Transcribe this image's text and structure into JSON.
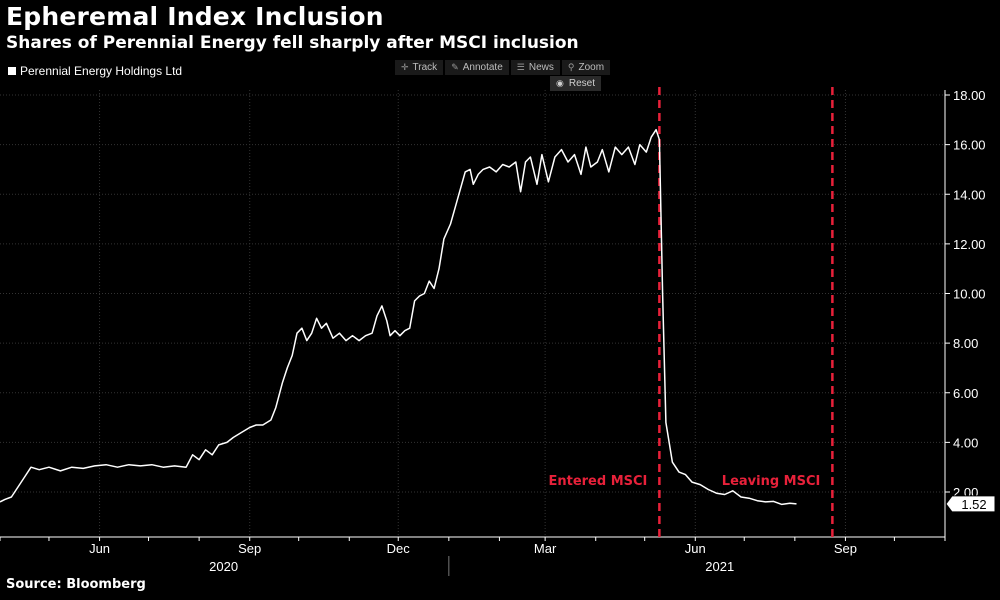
{
  "header": {
    "title": "Epheremal Index Inclusion",
    "subtitle": "Shares of Perennial Energy fell sharply after MSCI inclusion"
  },
  "legend": {
    "label": "Perennial Energy Holdings Ltd"
  },
  "toolbar": {
    "track": "Track",
    "annotate": "Annotate",
    "news": "News",
    "zoom": "Zoom",
    "reset": "Reset"
  },
  "source": "Source: Bloomberg",
  "chart_data": {
    "type": "line",
    "title": "Epheremal Index Inclusion",
    "subtitle": "Shares of Perennial Energy fell sharply after MSCI inclusion",
    "x_range": [
      "2020-04-01",
      "2021-11-01"
    ],
    "ylim": [
      0,
      18
    ],
    "y_ticks": [
      "2.00",
      "4.00",
      "6.00",
      "8.00",
      "10.00",
      "12.00",
      "14.00",
      "16.00",
      "18.00"
    ],
    "x_ticks": [
      {
        "label": "Jun",
        "date": "2020-06-01"
      },
      {
        "label": "Sep",
        "date": "2020-09-01"
      },
      {
        "label": "Dec",
        "date": "2020-12-01"
      },
      {
        "label": "Mar",
        "date": "2021-03-01"
      },
      {
        "label": "Jun",
        "date": "2021-06-01"
      },
      {
        "label": "Sep",
        "date": "2021-09-01"
      }
    ],
    "year_labels": [
      {
        "label": "2020",
        "date": "2020-08-16"
      },
      {
        "label": "2021",
        "date": "2021-06-16"
      }
    ],
    "year_divider": "2021-01-01",
    "grid": true,
    "legend_position": "top-left",
    "last_value_label": "1.52",
    "colors": {
      "line": "#ffffff",
      "annotation": "#e8213a",
      "grid": "#333333"
    },
    "annotations": [
      {
        "label": "Entered MSCI",
        "date": "2021-05-10"
      },
      {
        "label": "Leaving MSCI",
        "date": "2021-08-24"
      }
    ],
    "series": [
      {
        "name": "Perennial Energy Holdings Ltd",
        "points": [
          [
            "2020-04-01",
            1.6
          ],
          [
            "2020-04-04",
            1.7
          ],
          [
            "2020-04-08",
            1.8
          ],
          [
            "2020-04-12",
            2.2
          ],
          [
            "2020-04-16",
            2.6
          ],
          [
            "2020-04-20",
            3.0
          ],
          [
            "2020-04-25",
            2.9
          ],
          [
            "2020-05-01",
            3.0
          ],
          [
            "2020-05-08",
            2.85
          ],
          [
            "2020-05-15",
            3.0
          ],
          [
            "2020-05-22",
            2.95
          ],
          [
            "2020-05-29",
            3.05
          ],
          [
            "2020-06-05",
            3.1
          ],
          [
            "2020-06-12",
            3.0
          ],
          [
            "2020-06-19",
            3.1
          ],
          [
            "2020-06-26",
            3.05
          ],
          [
            "2020-07-03",
            3.1
          ],
          [
            "2020-07-10",
            3.0
          ],
          [
            "2020-07-17",
            3.05
          ],
          [
            "2020-07-24",
            3.0
          ],
          [
            "2020-07-28",
            3.5
          ],
          [
            "2020-08-01",
            3.3
          ],
          [
            "2020-08-05",
            3.7
          ],
          [
            "2020-08-09",
            3.5
          ],
          [
            "2020-08-13",
            3.9
          ],
          [
            "2020-08-18",
            4.0
          ],
          [
            "2020-08-22",
            4.2
          ],
          [
            "2020-08-27",
            4.4
          ],
          [
            "2020-09-01",
            4.6
          ],
          [
            "2020-09-05",
            4.7
          ],
          [
            "2020-09-09",
            4.7
          ],
          [
            "2020-09-14",
            4.9
          ],
          [
            "2020-09-17",
            5.4
          ],
          [
            "2020-09-21",
            6.4
          ],
          [
            "2020-09-24",
            7.0
          ],
          [
            "2020-09-27",
            7.5
          ],
          [
            "2020-09-30",
            8.4
          ],
          [
            "2020-10-03",
            8.6
          ],
          [
            "2020-10-06",
            8.1
          ],
          [
            "2020-10-09",
            8.4
          ],
          [
            "2020-10-12",
            9.0
          ],
          [
            "2020-10-15",
            8.6
          ],
          [
            "2020-10-18",
            8.8
          ],
          [
            "2020-10-22",
            8.2
          ],
          [
            "2020-10-26",
            8.4
          ],
          [
            "2020-10-30",
            8.1
          ],
          [
            "2020-11-03",
            8.3
          ],
          [
            "2020-11-07",
            8.1
          ],
          [
            "2020-11-11",
            8.3
          ],
          [
            "2020-11-15",
            8.4
          ],
          [
            "2020-11-18",
            9.1
          ],
          [
            "2020-11-21",
            9.5
          ],
          [
            "2020-11-24",
            8.9
          ],
          [
            "2020-11-26",
            8.3
          ],
          [
            "2020-11-29",
            8.5
          ],
          [
            "2020-12-02",
            8.3
          ],
          [
            "2020-12-05",
            8.5
          ],
          [
            "2020-12-08",
            8.6
          ],
          [
            "2020-12-11",
            9.7
          ],
          [
            "2020-12-14",
            9.9
          ],
          [
            "2020-12-17",
            10.0
          ],
          [
            "2020-12-20",
            10.5
          ],
          [
            "2020-12-23",
            10.2
          ],
          [
            "2020-12-26",
            11.0
          ],
          [
            "2020-12-29",
            12.2
          ],
          [
            "2021-01-02",
            12.8
          ],
          [
            "2021-01-05",
            13.5
          ],
          [
            "2021-01-08",
            14.2
          ],
          [
            "2021-01-11",
            14.9
          ],
          [
            "2021-01-14",
            15.0
          ],
          [
            "2021-01-16",
            14.4
          ],
          [
            "2021-01-19",
            14.8
          ],
          [
            "2021-01-22",
            15.0
          ],
          [
            "2021-01-26",
            15.1
          ],
          [
            "2021-01-30",
            14.9
          ],
          [
            "2021-02-03",
            15.2
          ],
          [
            "2021-02-07",
            15.1
          ],
          [
            "2021-02-11",
            15.3
          ],
          [
            "2021-02-14",
            14.1
          ],
          [
            "2021-02-17",
            15.3
          ],
          [
            "2021-02-20",
            15.5
          ],
          [
            "2021-02-24",
            14.4
          ],
          [
            "2021-02-27",
            15.6
          ],
          [
            "2021-03-03",
            14.5
          ],
          [
            "2021-03-07",
            15.5
          ],
          [
            "2021-03-11",
            15.8
          ],
          [
            "2021-03-15",
            15.3
          ],
          [
            "2021-03-19",
            15.6
          ],
          [
            "2021-03-23",
            14.8
          ],
          [
            "2021-03-26",
            15.9
          ],
          [
            "2021-03-29",
            15.1
          ],
          [
            "2021-04-02",
            15.3
          ],
          [
            "2021-04-05",
            15.8
          ],
          [
            "2021-04-09",
            14.9
          ],
          [
            "2021-04-13",
            15.9
          ],
          [
            "2021-04-17",
            15.6
          ],
          [
            "2021-04-21",
            15.9
          ],
          [
            "2021-04-25",
            15.2
          ],
          [
            "2021-04-28",
            16.0
          ],
          [
            "2021-05-02",
            15.7
          ],
          [
            "2021-05-05",
            16.3
          ],
          [
            "2021-05-08",
            16.6
          ],
          [
            "2021-05-10",
            16.2
          ],
          [
            "2021-05-12",
            10.0
          ],
          [
            "2021-05-14",
            4.8
          ],
          [
            "2021-05-18",
            3.2
          ],
          [
            "2021-05-22",
            2.8
          ],
          [
            "2021-05-26",
            2.7
          ],
          [
            "2021-05-30",
            2.4
          ],
          [
            "2021-06-04",
            2.3
          ],
          [
            "2021-06-09",
            2.1
          ],
          [
            "2021-06-14",
            1.95
          ],
          [
            "2021-06-19",
            1.9
          ],
          [
            "2021-06-24",
            2.05
          ],
          [
            "2021-06-29",
            1.8
          ],
          [
            "2021-07-04",
            1.75
          ],
          [
            "2021-07-09",
            1.65
          ],
          [
            "2021-07-14",
            1.6
          ],
          [
            "2021-07-19",
            1.62
          ],
          [
            "2021-07-24",
            1.5
          ],
          [
            "2021-07-29",
            1.55
          ],
          [
            "2021-08-02",
            1.52
          ]
        ]
      }
    ]
  }
}
